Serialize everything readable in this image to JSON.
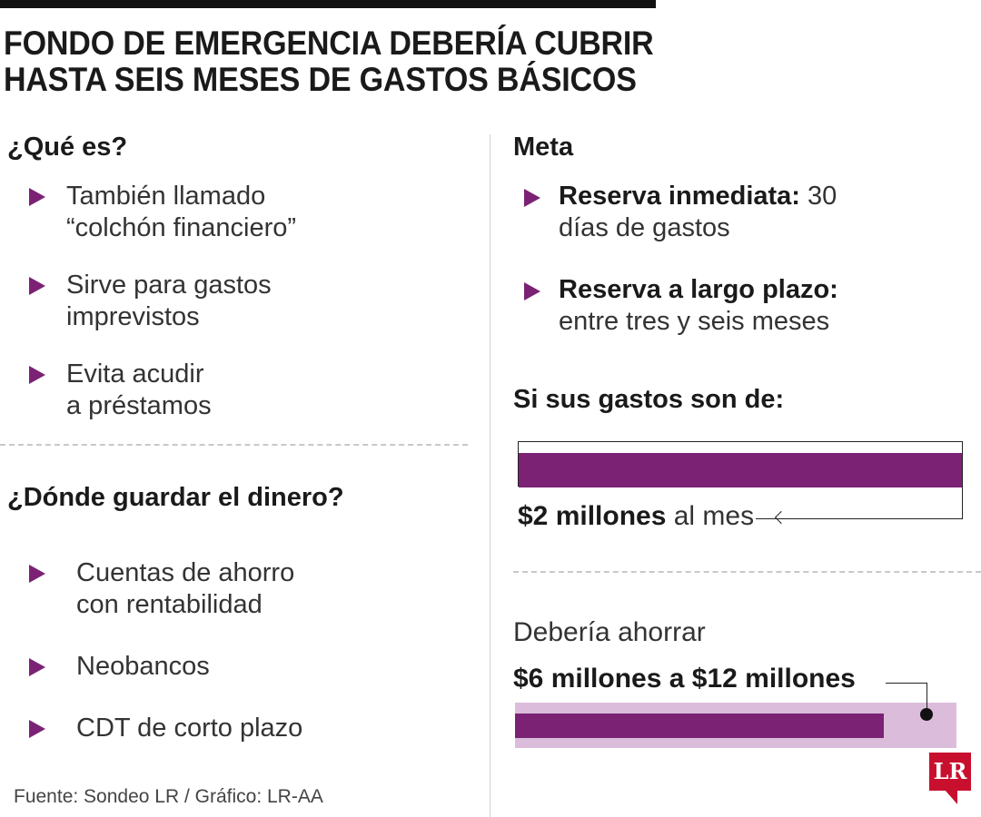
{
  "title": {
    "line1": "FONDO DE EMERGENCIA DEBERÍA CUBRIR",
    "line2": "HASTA SEIS MESES DE GASTOS BÁSICOS"
  },
  "que_es": {
    "heading": "¿Qué es?",
    "items": [
      {
        "line1": "También llamado",
        "line2": "“colchón financiero”"
      },
      {
        "line1": "Sirve para gastos",
        "line2": "imprevistos"
      },
      {
        "line1": "Evita acudir",
        "line2": "a préstamos"
      }
    ]
  },
  "donde": {
    "heading": "¿Dónde guardar el dinero?",
    "items": [
      {
        "line1": "Cuentas de ahorro",
        "line2": "con rentabilidad"
      },
      {
        "line1": "Neobancos",
        "line2": ""
      },
      {
        "line1": "CDT de corto plazo",
        "line2": ""
      }
    ]
  },
  "meta": {
    "heading": "Meta",
    "items": [
      {
        "bold": "Reserva inmediata:",
        "rest": " 30",
        "line2": "días de gastos"
      },
      {
        "bold": "Reserva a largo plazo:",
        "rest": "",
        "line2": "entre tres  y seis meses"
      }
    ]
  },
  "gastos": {
    "heading": "Si sus gastos son de:",
    "amount_bold": "$2 millones",
    "amount_rest": " al mes"
  },
  "ahorro": {
    "label": "Debería ahorrar",
    "range": "$6 millones a $12 millones"
  },
  "source": "Fuente: Sondeo LR / Gráfico: LR-AA",
  "logo_text": "LR",
  "colors": {
    "accent": "#7b2275",
    "accent_light": "#dbbddb",
    "logo": "#c8102e"
  },
  "icons": [
    "triangle-bullet-icon",
    "arrow-left-icon",
    "leader-dot-icon",
    "lr-logo-icon"
  ]
}
